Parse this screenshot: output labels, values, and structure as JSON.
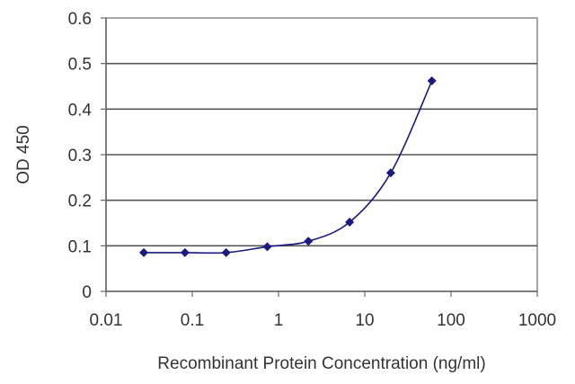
{
  "chart_data": {
    "type": "scatter",
    "title": "",
    "xlabel": "Recombinant Protein Concentration (ng/ml)",
    "ylabel": "OD 450",
    "xscale": "log",
    "xlim": [
      0.01,
      1000
    ],
    "ylim": [
      0,
      0.6
    ],
    "xticks": [
      {
        "value": 0.01,
        "label": "0.01"
      },
      {
        "value": 0.1,
        "label": "0.1"
      },
      {
        "value": 1,
        "label": "1"
      },
      {
        "value": 10,
        "label": "10"
      },
      {
        "value": 100,
        "label": "100"
      },
      {
        "value": 1000,
        "label": "1000"
      }
    ],
    "yticks": [
      {
        "value": 0,
        "label": "0"
      },
      {
        "value": 0.1,
        "label": "0.1"
      },
      {
        "value": 0.2,
        "label": "0.2"
      },
      {
        "value": 0.3,
        "label": "0.3"
      },
      {
        "value": 0.4,
        "label": "0.4"
      },
      {
        "value": 0.5,
        "label": "0.5"
      },
      {
        "value": 0.6,
        "label": "0.6"
      }
    ],
    "grid": "horizontal",
    "legend": "none",
    "fit_curve": true,
    "series": [
      {
        "x": [
          0.0274,
          0.0823,
          0.247,
          0.741,
          2.22,
          6.67,
          20,
          60
        ],
        "y": [
          0.085,
          0.085,
          0.085,
          0.098,
          0.11,
          0.152,
          0.26,
          0.462
        ],
        "color": "#1a1a80"
      }
    ]
  }
}
